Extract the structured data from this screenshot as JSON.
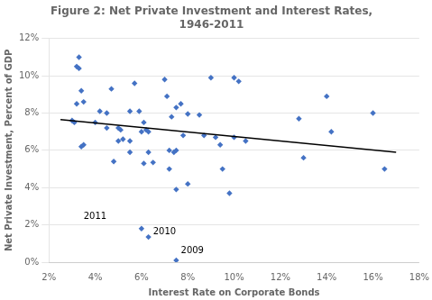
{
  "chart_data": {
    "type": "scatter",
    "title": "Figure 2: Net Private Investment and Interest Rates,\n1946-2011",
    "xlabel": "Interest Rate on Corporate Bonds",
    "ylabel": "Net Private Investment, Percent of GDP",
    "series": [
      {
        "type": "scatter",
        "color": "#4472C4",
        "marker": "diamond",
        "x": [
          3.0,
          3.1,
          3.2,
          3.2,
          3.3,
          3.3,
          3.4,
          3.4,
          3.5,
          3.5,
          4.0,
          4.2,
          4.5,
          4.5,
          4.7,
          4.8,
          5.0,
          5.0,
          5.1,
          5.2,
          5.5,
          5.5,
          5.5,
          5.7,
          5.9,
          6.0,
          6.1,
          6.1,
          6.2,
          6.3,
          6.3,
          6.5,
          7.0,
          7.1,
          7.2,
          7.2,
          7.3,
          7.4,
          7.5,
          7.5,
          7.5,
          7.7,
          7.8,
          8.0,
          8.0,
          8.5,
          8.7,
          9.0,
          9.2,
          9.4,
          9.5,
          9.8,
          10.0,
          10.0,
          10.2,
          10.5,
          12.8,
          13.0,
          14.0,
          14.2,
          16.0,
          16.5,
          6.0,
          6.3,
          7.5
        ],
        "values": [
          7.6,
          7.5,
          8.5,
          10.5,
          11.0,
          10.4,
          9.2,
          6.2,
          8.6,
          6.3,
          7.5,
          8.1,
          7.2,
          8.0,
          9.3,
          5.4,
          7.2,
          6.5,
          7.1,
          6.6,
          8.1,
          5.9,
          6.5,
          9.6,
          8.1,
          7.0,
          7.5,
          5.3,
          7.1,
          7.0,
          5.9,
          5.35,
          9.8,
          8.9,
          5.0,
          6.0,
          7.8,
          5.9,
          8.3,
          6.0,
          3.9,
          8.5,
          6.8,
          4.2,
          7.95,
          7.9,
          6.8,
          9.9,
          6.7,
          6.3,
          5.0,
          3.7,
          9.9,
          6.7,
          9.7,
          6.5,
          7.7,
          5.6,
          8.9,
          7.0,
          8.0,
          5.0,
          1.8,
          1.35,
          0.1
        ]
      },
      {
        "type": "line",
        "color": "#000000",
        "line_style": "solid",
        "x": [
          2.5,
          17.0
        ],
        "values": [
          7.65,
          5.9
        ]
      }
    ],
    "annotations": [
      {
        "text": "2011",
        "x": 3.5,
        "y": 2.3
      },
      {
        "text": "2010",
        "x": 6.5,
        "y": 1.5
      },
      {
        "text": "2009",
        "x": 7.7,
        "y": 0.5
      }
    ],
    "xlim": [
      2,
      18
    ],
    "ylim": [
      0,
      12
    ],
    "xticks": [
      {
        "value": 2,
        "label": "2%"
      },
      {
        "value": 4,
        "label": "4%"
      },
      {
        "value": 6,
        "label": "6%"
      },
      {
        "value": 8,
        "label": "8%"
      },
      {
        "value": 10,
        "label": "10%"
      },
      {
        "value": 12,
        "label": "12%"
      },
      {
        "value": 14,
        "label": "14%"
      },
      {
        "value": 16,
        "label": "16%"
      },
      {
        "value": 18,
        "label": "18%"
      }
    ],
    "yticks": [
      {
        "value": 0,
        "label": "0%"
      },
      {
        "value": 2,
        "label": "2%"
      },
      {
        "value": 4,
        "label": "4%"
      },
      {
        "value": 6,
        "label": "6%"
      },
      {
        "value": 8,
        "label": "8%"
      },
      {
        "value": 10,
        "label": "10%"
      },
      {
        "value": 12,
        "label": "12%"
      }
    ],
    "grid": "y"
  }
}
